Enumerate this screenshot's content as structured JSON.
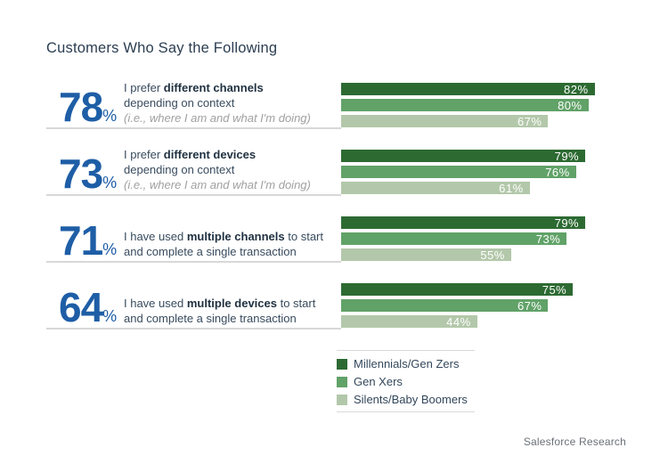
{
  "title": "Customers Who Say the Following",
  "footer": "Salesforce Research",
  "colors": {
    "stat_blue": "#1e5ea6",
    "dark_green": "#2d6a32",
    "mid_green": "#61a268",
    "light_green": "#b3c8aa"
  },
  "legend": [
    {
      "label": "Millennials/Gen Zers",
      "color": "#2d6a32"
    },
    {
      "label": "Gen Xers",
      "color": "#61a268"
    },
    {
      "label": "Silents/Baby Boomers",
      "color": "#b3c8aa"
    }
  ],
  "groups": [
    {
      "stat": "78",
      "pct": "%",
      "line1_pre": "I prefer ",
      "line1_bold": "different channels",
      "line1_post": "",
      "line2": "depending on context",
      "line3": "(i.e., where I am and what I'm doing)",
      "bars": [
        {
          "label": "82%",
          "value": 82
        },
        {
          "label": "80%",
          "value": 80
        },
        {
          "label": "67%",
          "value": 67
        }
      ]
    },
    {
      "stat": "73",
      "pct": "%",
      "line1_pre": "I prefer ",
      "line1_bold": "different devices",
      "line1_post": "",
      "line2": "depending on context",
      "line3": "(i.e., where I am and what I'm doing)",
      "bars": [
        {
          "label": "79%",
          "value": 79
        },
        {
          "label": "76%",
          "value": 76
        },
        {
          "label": "61%",
          "value": 61
        }
      ]
    },
    {
      "stat": "71",
      "pct": "%",
      "line1_pre": "I have used ",
      "line1_bold": "multiple channels",
      "line1_post": " to start",
      "line2": "and complete a single transaction",
      "line3": "",
      "bars": [
        {
          "label": "79%",
          "value": 79
        },
        {
          "label": "73%",
          "value": 73
        },
        {
          "label": "55%",
          "value": 55
        }
      ]
    },
    {
      "stat": "64",
      "pct": "%",
      "line1_pre": "I have used ",
      "line1_bold": "multiple devices",
      "line1_post": " to start",
      "line2": "and complete a single transaction",
      "line3": "",
      "bars": [
        {
          "label": "75%",
          "value": 75
        },
        {
          "label": "67%",
          "value": 67
        },
        {
          "label": "44%",
          "value": 44
        }
      ]
    }
  ],
  "chart_data": {
    "type": "bar",
    "orientation": "horizontal",
    "title": "Customers Who Say the Following",
    "categories": [
      "I prefer different channels depending on context (i.e., where I am and what I'm doing)",
      "I prefer different devices depending on context (i.e., where I am and what I'm doing)",
      "I have used multiple channels to start and complete a single transaction",
      "I have used multiple devices to start and complete a single transaction"
    ],
    "overall_values": [
      78,
      73,
      71,
      64
    ],
    "series": [
      {
        "name": "Millennials/Gen Zers",
        "values": [
          82,
          79,
          79,
          75
        ],
        "color": "#2d6a32"
      },
      {
        "name": "Gen Xers",
        "values": [
          80,
          76,
          73,
          67
        ],
        "color": "#61a268"
      },
      {
        "name": "Silents/Baby Boomers",
        "values": [
          67,
          61,
          55,
          44
        ],
        "color": "#b3c8aa"
      }
    ],
    "xlim": [
      0,
      100
    ],
    "value_suffix": "%",
    "data_labels": "inside-end, white",
    "grid": false,
    "legend_position": "bottom-right",
    "source": "Salesforce Research"
  }
}
